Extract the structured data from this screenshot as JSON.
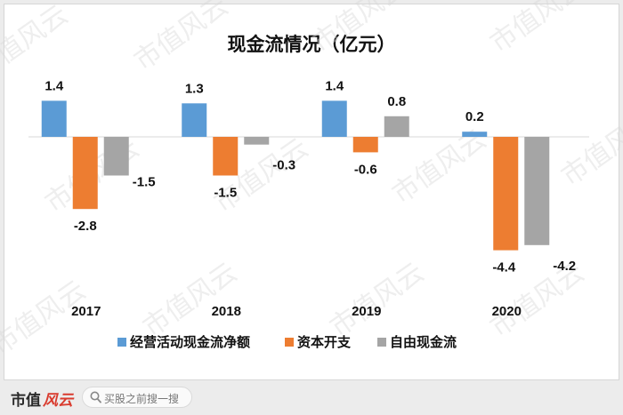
{
  "chart_data": {
    "type": "bar",
    "title": "现金流情况（亿元）",
    "categories": [
      "2017",
      "2018",
      "2019",
      "2020"
    ],
    "series": [
      {
        "name": "经营活动现金流净额",
        "color": "#5b9bd5",
        "values": [
          1.4,
          1.3,
          1.4,
          0.2
        ]
      },
      {
        "name": "资本开支",
        "color": "#ed7d31",
        "values": [
          -2.8,
          -1.5,
          -0.6,
          -4.4
        ]
      },
      {
        "name": "自由现金流",
        "color": "#a5a5a5",
        "values": [
          -1.5,
          -0.3,
          0.8,
          -4.2
        ]
      }
    ],
    "ylim": [
      -4.6,
      1.6
    ],
    "grid": false,
    "legend_position": "bottom",
    "data_labels": true
  },
  "watermark": "市值风云",
  "footer": {
    "brand_main": "市值",
    "brand_accent": "风云",
    "search_placeholder": "买股之前搜一搜",
    "search_icon": "search-icon"
  }
}
